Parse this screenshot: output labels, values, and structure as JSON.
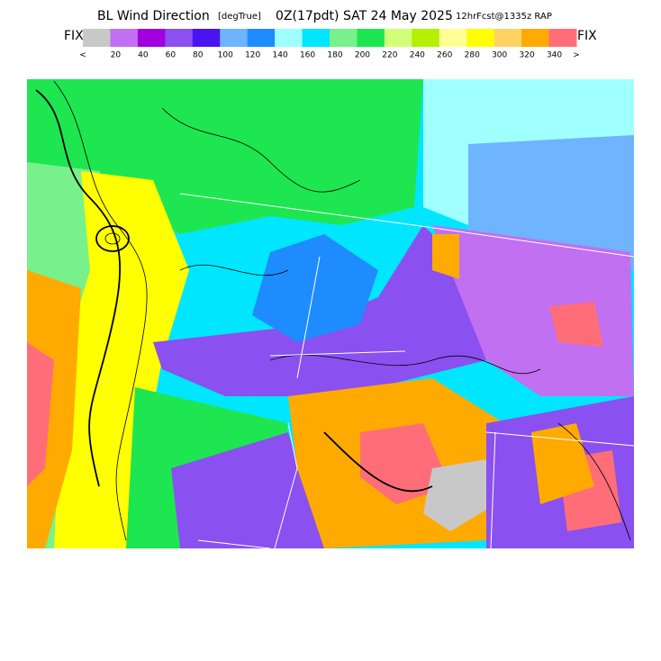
{
  "header": {
    "title": "BL Wind Direction",
    "units": "[degTrue]",
    "time": "0Z(17pdt) SAT 24 May 2025",
    "forecast": "12hrFcst@1335z RAP"
  },
  "colorbar": {
    "left_label": "FIX",
    "right_label": "FIX",
    "colors": [
      "#c8c8c8",
      "#c070f0",
      "#a000e0",
      "#8a50f0",
      "#4a14f0",
      "#6eb4ff",
      "#1e8cff",
      "#a0ffff",
      "#00e6ff",
      "#78f08c",
      "#1ee650",
      "#d2ff78",
      "#b4f000",
      "#ffff96",
      "#ffff00",
      "#ffd264",
      "#ffaa00",
      "#ff6e78"
    ],
    "labels": [
      "<",
      "20",
      "40",
      "60",
      "80",
      "100",
      "120",
      "140",
      "160",
      "180",
      "200",
      "220",
      "240",
      "260",
      "280",
      "300",
      "320",
      "340",
      ">"
    ]
  }
}
